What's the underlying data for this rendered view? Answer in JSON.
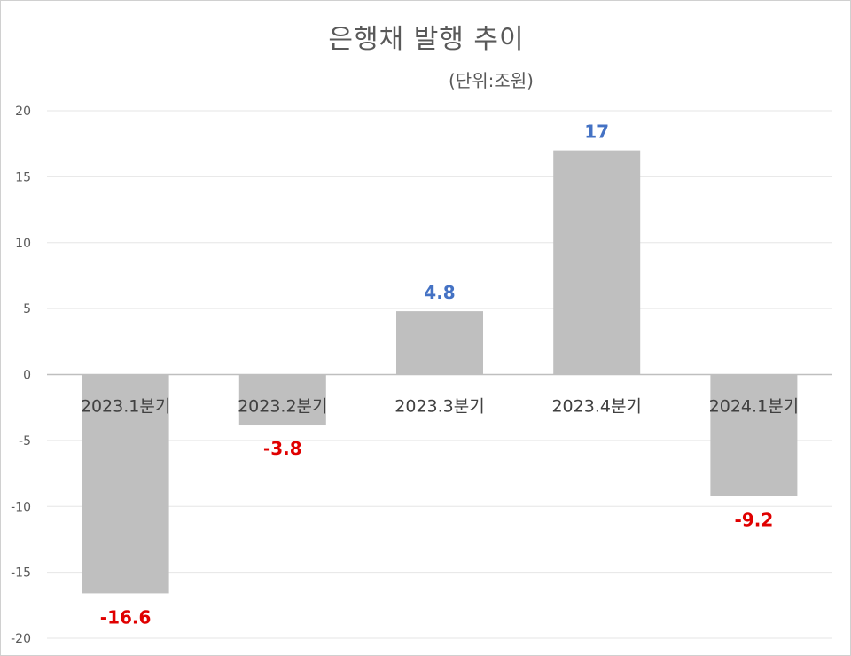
{
  "chart_data": {
    "type": "bar",
    "title": "은행채 발행 추이",
    "unit_note": "(단위:조원)",
    "categories": [
      "2023.1분기",
      "2023.2분기",
      "2023.3분기",
      "2023.4분기",
      "2024.1분기"
    ],
    "values": [
      -16.6,
      -3.8,
      4.8,
      17,
      -9.2
    ],
    "value_labels": [
      "-16.6",
      "-3.8",
      "4.8",
      "17",
      "-9.2"
    ],
    "xlabel": "",
    "ylabel": "",
    "ylim": [
      -20,
      20
    ],
    "yticks": [
      20,
      15,
      10,
      5,
      0,
      -5,
      -10,
      -15,
      -20
    ],
    "grid": true,
    "legend": "none",
    "colors": {
      "bar": "#bfbfbf",
      "positive_label": "#4472c4",
      "negative_label": "#e00000",
      "grid": "#e6e6e6",
      "zero_line": "#bfbfbf",
      "tick_text": "#595959",
      "category_text": "#404040"
    }
  }
}
